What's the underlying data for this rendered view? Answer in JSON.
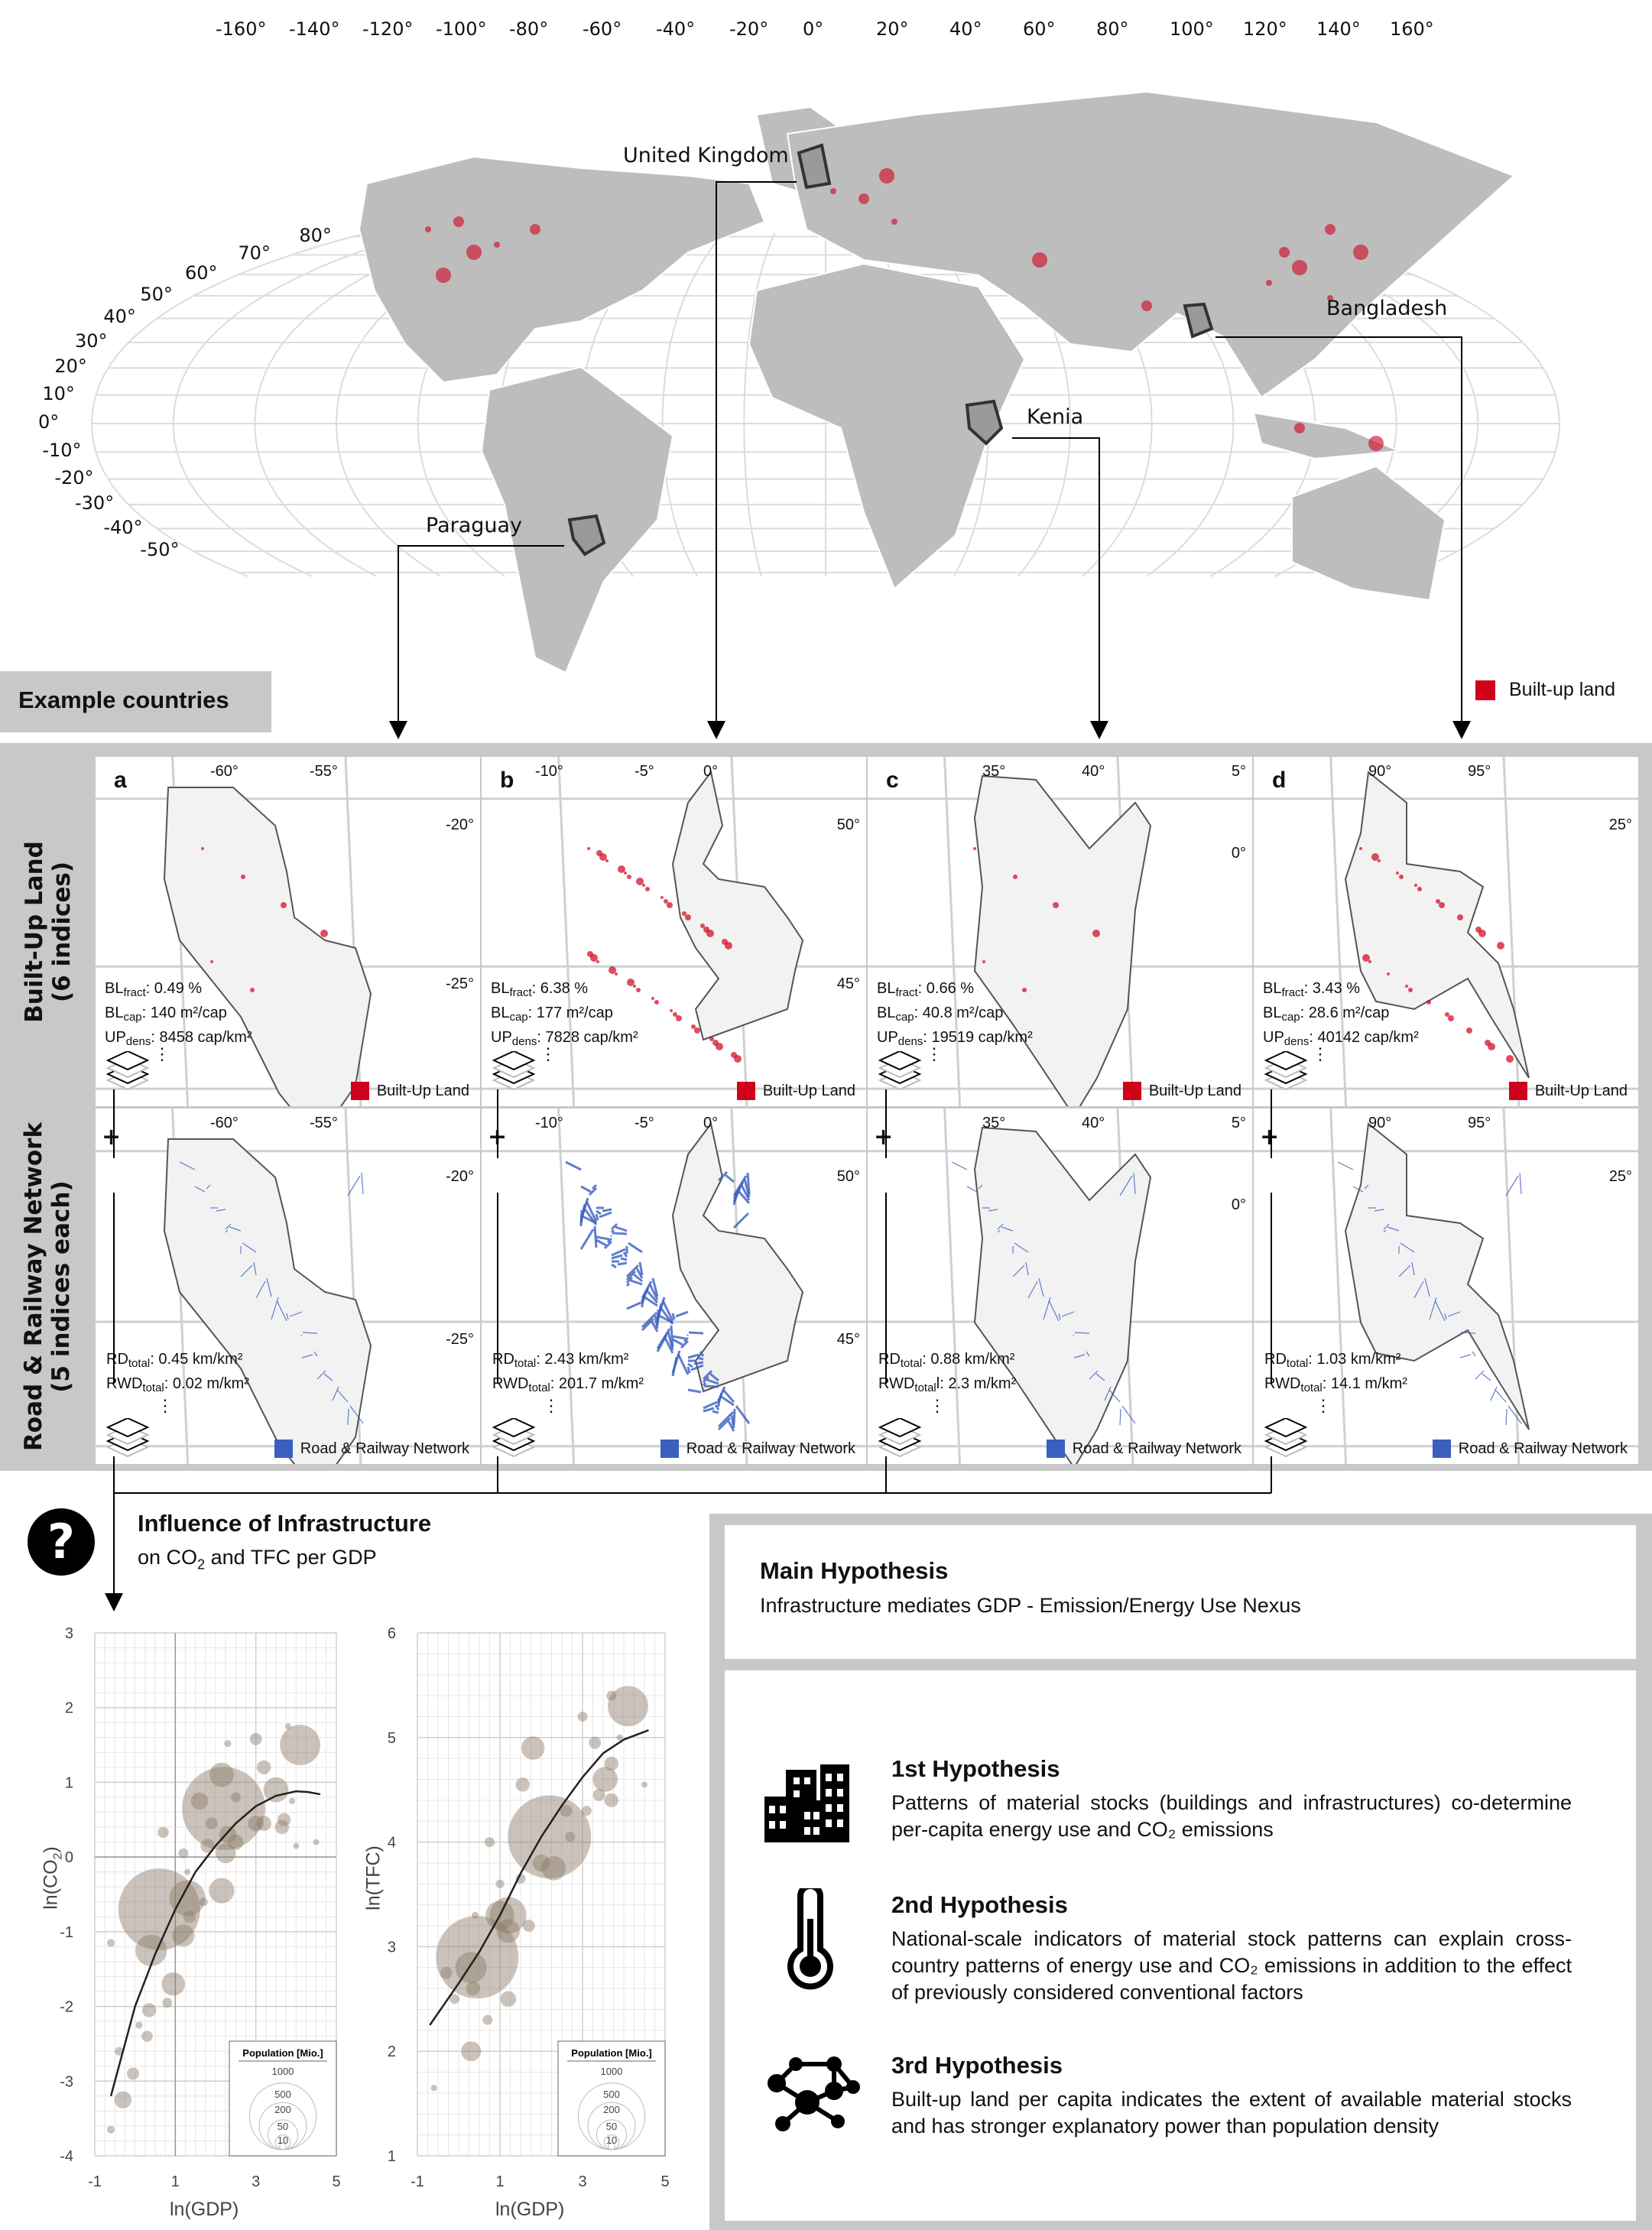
{
  "world_map": {
    "lon_labels": [
      "-160°",
      "-140°",
      "-120°",
      "-100°",
      "-80°",
      "-60°",
      "-40°",
      "-20°",
      "0°",
      "20°",
      "40°",
      "60°",
      "80°",
      "100°",
      "120°",
      "140°",
      "160°"
    ],
    "lat_labels": [
      "80°",
      "70°",
      "60°",
      "50°",
      "40°",
      "30°",
      "20°",
      "10°",
      "0°",
      "-10°",
      "-20°",
      "-30°",
      "-40°",
      "-50°"
    ],
    "countries": [
      "United Kingdom",
      "Bangladesh",
      "Kenia",
      "Paraguay"
    ],
    "legend": "Built-up land",
    "colors": {
      "land": "#bdbdbd",
      "built_up": "#d0021b",
      "graticule": "#dcdcdc"
    }
  },
  "example_countries_label": "Example countries",
  "row_labels": {
    "built_up": {
      "title": "Built-Up Land",
      "sub": "(6 indices)"
    },
    "network": {
      "title": "Road & Railway Network",
      "sub": "(5 indices each)"
    }
  },
  "panels": [
    {
      "letter": "a",
      "country": "Paraguay",
      "lon": [
        "-60°",
        "-55°"
      ],
      "lat": [
        "-20°",
        "-25°"
      ],
      "bl": {
        "fract": "0.49 %",
        "cap": "140 m²/cap",
        "dens": "8458 cap/km²"
      },
      "rn": {
        "rd": "0.45 km/km²",
        "rwd": "0.02 m/km²"
      }
    },
    {
      "letter": "b",
      "country": "United Kingdom",
      "lon": [
        "-10°",
        "-5°",
        "0°"
      ],
      "lat": [
        "50°",
        "45°"
      ],
      "bl": {
        "fract": "6.38 %",
        "cap": "177 m²/cap",
        "dens": "7828 cap/km²"
      },
      "rn": {
        "rd": "2.43 km/km²",
        "rwd": "201.7 m/km²"
      }
    },
    {
      "letter": "c",
      "country": "Kenia",
      "lon": [
        "35°",
        "40°"
      ],
      "lat": [
        "5°",
        "0°"
      ],
      "bl": {
        "fract": "0.66 %",
        "cap": "40.8 m²/cap",
        "dens": "19519 cap/km²"
      },
      "rn": {
        "rd": "0.88 km/km²",
        "rwd": "2.3 m/km²",
        "rwd_suffix": "l"
      }
    },
    {
      "letter": "d",
      "country": "Bangladesh",
      "lon": [
        "90°",
        "95°"
      ],
      "lat": [
        "25°"
      ],
      "bl": {
        "fract": "3.43 %",
        "cap": "28.6 m²/cap",
        "dens": "40142 cap/km²"
      },
      "rn": {
        "rd": "1.03 km/km²",
        "rwd": "14.1 m/km²"
      }
    }
  ],
  "index_labels": {
    "bl": "BL",
    "fract": "fract",
    "cap": "cap",
    "up": "UP",
    "dens": "dens",
    "rd": "RD",
    "rwd": "RWD",
    "total": "total",
    "ellipsis": "⋮",
    "plus": "+"
  },
  "panel_legends": {
    "built_up": "Built-Up Land",
    "network": "Road & Railway Network",
    "colors": {
      "built_up": "#d0021b",
      "network": "#3a5fbf"
    }
  },
  "influence": {
    "icon": "question-icon",
    "title": "Influence of Infrastructure",
    "sub_pre": "on CO",
    "sub_sub": "2",
    "sub_post": " and TFC per GDP"
  },
  "chart_data": [
    {
      "type": "scatter",
      "xlabel": "ln(GDP)",
      "ylabel_pre": "ln(CO",
      "ylabel_sub": "2",
      "ylabel_post": ")",
      "xlim": [
        -1,
        5
      ],
      "ylim": [
        -4,
        3
      ],
      "xticks": [
        -1,
        1,
        3,
        5
      ],
      "yticks": [
        -4,
        -3,
        -2,
        -1,
        0,
        1,
        2,
        3
      ],
      "grid": true,
      "size_legend": {
        "title": "Population [Mio.]",
        "values": [
          1000,
          500,
          200,
          50,
          10
        ]
      },
      "points": [
        [
          0.6,
          -0.7,
          1350
        ],
        [
          2.2,
          0.65,
          1400
        ],
        [
          4.1,
          1.5,
          330
        ],
        [
          1.3,
          -0.55,
          260
        ],
        [
          0.4,
          -1.25,
          200
        ],
        [
          2.15,
          1.1,
          120
        ],
        [
          2.15,
          -0.45,
          130
        ],
        [
          0.95,
          -1.7,
          110
        ],
        [
          1.2,
          -1.05,
          100
        ],
        [
          3.5,
          0.9,
          127
        ],
        [
          3.0,
          1.58,
          30
        ],
        [
          3.2,
          1.2,
          40
        ],
        [
          -0.3,
          -3.25,
          60
        ],
        [
          -0.05,
          -2.9,
          30
        ],
        [
          -0.4,
          -2.6,
          15
        ],
        [
          -0.6,
          -3.65,
          12
        ],
        [
          0.35,
          -2.05,
          40
        ],
        [
          0.3,
          -2.4,
          25
        ],
        [
          0.8,
          -1.95,
          20
        ],
        [
          0.7,
          0.33,
          25
        ],
        [
          1.2,
          0.05,
          20
        ],
        [
          1.8,
          0.15,
          40
        ],
        [
          1.35,
          -0.8,
          30
        ],
        [
          2.3,
          0.3,
          60
        ],
        [
          2.25,
          0.05,
          80
        ],
        [
          3.0,
          0.45,
          50
        ],
        [
          3.2,
          0.45,
          45
        ],
        [
          3.65,
          0.4,
          40
        ],
        [
          3.7,
          0.5,
          35
        ],
        [
          2.3,
          1.52,
          10
        ],
        [
          2.5,
          0.8,
          20
        ],
        [
          3.9,
          0.75,
          8
        ],
        [
          4.5,
          0.2,
          4
        ],
        [
          2.5,
          0.2,
          50
        ],
        [
          -0.6,
          -1.15,
          12
        ],
        [
          0.1,
          -2.25,
          10
        ],
        [
          1.7,
          -0.6,
          15
        ],
        [
          1.3,
          -0.2,
          5
        ],
        [
          3.8,
          1.75,
          3
        ],
        [
          4.0,
          0.15,
          4
        ],
        [
          1.6,
          0.75,
          60
        ],
        [
          1.9,
          0.45,
          30
        ]
      ],
      "trend": [
        [
          -0.6,
          -3.2
        ],
        [
          0,
          -2.0
        ],
        [
          0.5,
          -1.3
        ],
        [
          1,
          -0.7
        ],
        [
          1.5,
          -0.2
        ],
        [
          2,
          0.15
        ],
        [
          2.5,
          0.45
        ],
        [
          3,
          0.68
        ],
        [
          3.5,
          0.82
        ],
        [
          4,
          0.88
        ],
        [
          4.3,
          0.87
        ],
        [
          4.6,
          0.84
        ]
      ]
    },
    {
      "type": "scatter",
      "xlabel": "ln(GDP)",
      "ylabel_pre": "ln(TFC)",
      "ylabel_sub": "",
      "ylabel_post": "",
      "xlim": [
        -1,
        5
      ],
      "ylim": [
        1,
        6
      ],
      "xticks": [
        -1,
        1,
        3,
        5
      ],
      "yticks": [
        1,
        2,
        3,
        4,
        5,
        6
      ],
      "grid": true,
      "size_legend": {
        "title": "Population [Mio.]",
        "values": [
          1000,
          500,
          200,
          50,
          10
        ]
      },
      "points": [
        [
          0.45,
          2.9,
          1380
        ],
        [
          2.2,
          4.05,
          1400
        ],
        [
          4.1,
          5.3,
          330
        ],
        [
          1.2,
          3.3,
          270
        ],
        [
          0.3,
          2.8,
          200
        ],
        [
          1.8,
          4.9,
          110
        ],
        [
          2.3,
          3.75,
          120
        ],
        [
          1.0,
          3.3,
          170
        ],
        [
          1.2,
          3.15,
          110
        ],
        [
          3.55,
          4.6,
          127
        ],
        [
          0.3,
          2.0,
          80
        ],
        [
          1.55,
          4.55,
          40
        ],
        [
          3.0,
          5.2,
          20
        ],
        [
          3.3,
          4.95,
          30
        ],
        [
          3.7,
          4.75,
          40
        ],
        [
          3.7,
          4.4,
          40
        ],
        [
          3.4,
          4.45,
          30
        ],
        [
          3.1,
          4.3,
          20
        ],
        [
          -0.3,
          2.75,
          30
        ],
        [
          -0.1,
          2.5,
          20
        ],
        [
          0.7,
          2.3,
          20
        ],
        [
          1.2,
          2.5,
          50
        ],
        [
          0.35,
          2.6,
          40
        ],
        [
          -0.6,
          1.65,
          8
        ],
        [
          0.75,
          4.0,
          20
        ],
        [
          1.5,
          3.65,
          20
        ],
        [
          1.7,
          3.2,
          30
        ],
        [
          2.6,
          4.3,
          30
        ],
        [
          2.7,
          4.05,
          20
        ],
        [
          3.7,
          5.4,
          20
        ],
        [
          3.9,
          5.0,
          5
        ],
        [
          4.5,
          4.55,
          3
        ],
        [
          0.4,
          3.3,
          10
        ],
        [
          1.0,
          3.6,
          15
        ],
        [
          2.0,
          3.8,
          60
        ]
      ],
      "trend": [
        [
          -0.7,
          2.25
        ],
        [
          0,
          2.65
        ],
        [
          0.5,
          2.95
        ],
        [
          1,
          3.3
        ],
        [
          1.5,
          3.7
        ],
        [
          2,
          4.05
        ],
        [
          2.5,
          4.35
        ],
        [
          3,
          4.62
        ],
        [
          3.5,
          4.85
        ],
        [
          4,
          4.98
        ],
        [
          4.6,
          5.07
        ]
      ]
    }
  ],
  "bubble_color": "#8c7b68",
  "main_hypothesis": {
    "title": "Main Hypothesis",
    "text": "Infrastructure mediates GDP - Emission/Energy Use Nexus"
  },
  "hypotheses": [
    {
      "icon": "buildings-icon",
      "title": "1st Hypothesis",
      "text": "Patterns of material stocks (buildings and infrastructures) co-determine per-capita energy use and CO₂ emissions"
    },
    {
      "icon": "thermometer-icon",
      "title": "2nd Hypothesis",
      "text": "National-scale indicators of material stock patterns can explain cross-country patterns of energy use and CO₂ emissions in addition to the effect of previously considered conventional factors"
    },
    {
      "icon": "network-icon",
      "title": "3rd Hypothesis",
      "text": "Built-up land per capita indicates the extent of available material stocks and has stronger explanatory power than population density"
    }
  ]
}
